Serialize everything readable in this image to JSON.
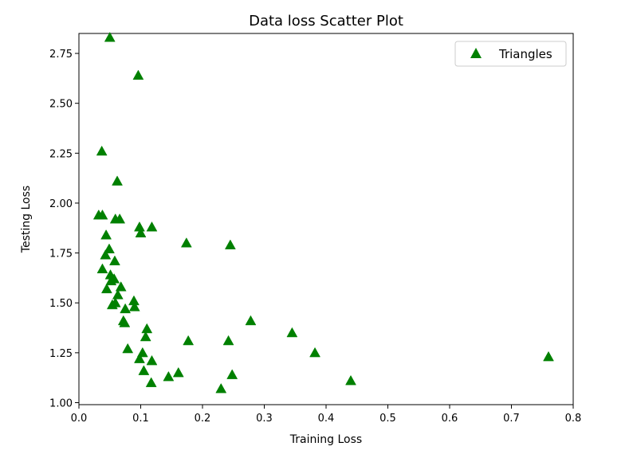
{
  "chart_data": {
    "type": "scatter",
    "title": "Data loss Scatter Plot",
    "xlabel": "Training Loss",
    "ylabel": "Testing Loss",
    "xlim": [
      0.0,
      0.8
    ],
    "ylim": [
      0.99,
      2.85
    ],
    "xticks": [
      "0.0",
      "0.1",
      "0.2",
      "0.3",
      "0.4",
      "0.5",
      "0.6",
      "0.7",
      "0.8"
    ],
    "yticks": [
      "1.00",
      "1.25",
      "1.50",
      "1.75",
      "2.00",
      "2.25",
      "2.50",
      "2.75"
    ],
    "grid": false,
    "legend_position": "top-right",
    "colors": {
      "marker": "#008000"
    },
    "marker": "triangle-up",
    "series": [
      {
        "name": "Triangles",
        "points": [
          [
            0.05,
            2.83
          ],
          [
            0.096,
            2.64
          ],
          [
            0.037,
            2.26
          ],
          [
            0.062,
            2.11
          ],
          [
            0.032,
            1.94
          ],
          [
            0.038,
            1.94
          ],
          [
            0.059,
            1.92
          ],
          [
            0.066,
            1.92
          ],
          [
            0.098,
            1.88
          ],
          [
            0.118,
            1.88
          ],
          [
            0.1,
            1.85
          ],
          [
            0.044,
            1.84
          ],
          [
            0.174,
            1.8
          ],
          [
            0.245,
            1.79
          ],
          [
            0.049,
            1.77
          ],
          [
            0.043,
            1.74
          ],
          [
            0.058,
            1.71
          ],
          [
            0.038,
            1.67
          ],
          [
            0.051,
            1.64
          ],
          [
            0.057,
            1.62
          ],
          [
            0.052,
            1.61
          ],
          [
            0.068,
            1.58
          ],
          [
            0.045,
            1.57
          ],
          [
            0.063,
            1.54
          ],
          [
            0.089,
            1.51
          ],
          [
            0.059,
            1.5
          ],
          [
            0.054,
            1.49
          ],
          [
            0.09,
            1.48
          ],
          [
            0.075,
            1.47
          ],
          [
            0.072,
            1.41
          ],
          [
            0.074,
            1.4
          ],
          [
            0.278,
            1.41
          ],
          [
            0.11,
            1.37
          ],
          [
            0.345,
            1.35
          ],
          [
            0.108,
            1.33
          ],
          [
            0.177,
            1.31
          ],
          [
            0.242,
            1.31
          ],
          [
            0.079,
            1.27
          ],
          [
            0.103,
            1.25
          ],
          [
            0.382,
            1.25
          ],
          [
            0.76,
            1.23
          ],
          [
            0.098,
            1.22
          ],
          [
            0.118,
            1.21
          ],
          [
            0.105,
            1.16
          ],
          [
            0.161,
            1.15
          ],
          [
            0.145,
            1.13
          ],
          [
            0.248,
            1.14
          ],
          [
            0.44,
            1.11
          ],
          [
            0.117,
            1.1
          ],
          [
            0.23,
            1.07
          ]
        ]
      }
    ]
  }
}
